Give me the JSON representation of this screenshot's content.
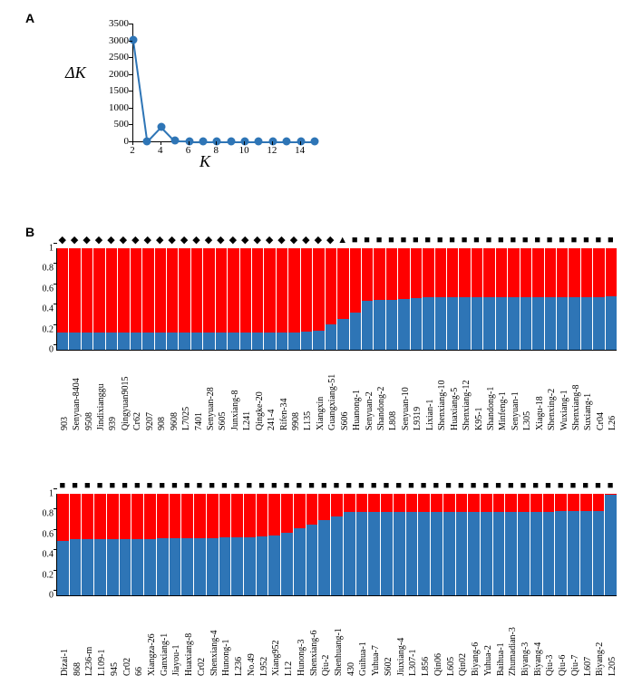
{
  "panelA": {
    "label": "A",
    "type": "line",
    "xlabel": "K",
    "ylabel": "ΔK",
    "xlim": [
      2,
      15
    ],
    "ylim": [
      0,
      3500
    ],
    "ytick_step": 500,
    "xtick_step": 2,
    "x": [
      2,
      3,
      4,
      5,
      6,
      7,
      8,
      9,
      10,
      11,
      12,
      13,
      14,
      15
    ],
    "y": [
      3020,
      8,
      440,
      14,
      12,
      10,
      9,
      8,
      8,
      7,
      7,
      6,
      6,
      6
    ],
    "line_color": "#2e75b6",
    "marker_color": "#2e75b6",
    "marker_size": 9,
    "line_width": 2
  },
  "panelB": {
    "label": "B",
    "type": "stacked-bar",
    "ylim": [
      0,
      1
    ],
    "ytick_step": 0.2,
    "top_color": "#ff0000",
    "bottom_color": "#2e75b6",
    "symbol_glyphs": {
      "diamond": "◆",
      "triangle": "▲",
      "square": "■"
    },
    "rows": [
      {
        "items": [
          {
            "label": "903",
            "blue": 0.17,
            "sym": "diamond"
          },
          {
            "label": "Senyuan-8404",
            "blue": 0.17,
            "sym": "diamond"
          },
          {
            "label": "9508",
            "blue": 0.17,
            "sym": "diamond"
          },
          {
            "label": "Jindixianggu",
            "blue": 0.17,
            "sym": "diamond"
          },
          {
            "label": "939",
            "blue": 0.17,
            "sym": "diamond"
          },
          {
            "label": "Qingyuan9015",
            "blue": 0.17,
            "sym": "diamond"
          },
          {
            "label": "Cr62",
            "blue": 0.17,
            "sym": "diamond"
          },
          {
            "label": "9207",
            "blue": 0.17,
            "sym": "diamond"
          },
          {
            "label": "908",
            "blue": 0.17,
            "sym": "diamond"
          },
          {
            "label": "9608",
            "blue": 0.17,
            "sym": "diamond"
          },
          {
            "label": "L7025",
            "blue": 0.17,
            "sym": "diamond"
          },
          {
            "label": "7401",
            "blue": 0.17,
            "sym": "diamond"
          },
          {
            "label": "Senyuan-28",
            "blue": 0.17,
            "sym": "diamond"
          },
          {
            "label": "S605",
            "blue": 0.17,
            "sym": "diamond"
          },
          {
            "label": "Junxiang-8",
            "blue": 0.17,
            "sym": "diamond"
          },
          {
            "label": "L241",
            "blue": 0.17,
            "sym": "diamond"
          },
          {
            "label": "Qingke-20",
            "blue": 0.17,
            "sym": "diamond"
          },
          {
            "label": "241-4",
            "blue": 0.17,
            "sym": "diamond"
          },
          {
            "label": "Rifen-34",
            "blue": 0.17,
            "sym": "diamond"
          },
          {
            "label": "9908",
            "blue": 0.17,
            "sym": "diamond"
          },
          {
            "label": "L135",
            "blue": 0.18,
            "sym": "diamond"
          },
          {
            "label": "Xiangxin",
            "blue": 0.19,
            "sym": "diamond"
          },
          {
            "label": "Guangxiang-51",
            "blue": 0.25,
            "sym": "diamond"
          },
          {
            "label": "S606",
            "blue": 0.3,
            "sym": "triangle"
          },
          {
            "label": "Huanong-1",
            "blue": 0.37,
            "sym": "square"
          },
          {
            "label": "Senyuan-2",
            "blue": 0.48,
            "sym": "square"
          },
          {
            "label": "Shandong-2",
            "blue": 0.49,
            "sym": "square"
          },
          {
            "label": "L808",
            "blue": 0.49,
            "sym": "square"
          },
          {
            "label": "Senyuan-10",
            "blue": 0.5,
            "sym": "square"
          },
          {
            "label": "L9319",
            "blue": 0.51,
            "sym": "square"
          },
          {
            "label": "Lixian-1",
            "blue": 0.52,
            "sym": "square"
          },
          {
            "label": "Shenxiang-10",
            "blue": 0.52,
            "sym": "square"
          },
          {
            "label": "Huaxiang-5",
            "blue": 0.52,
            "sym": "square"
          },
          {
            "label": "Shenxiang-12",
            "blue": 0.52,
            "sym": "square"
          },
          {
            "label": "K95-1",
            "blue": 0.52,
            "sym": "square"
          },
          {
            "label": "Shandong-1",
            "blue": 0.52,
            "sym": "square"
          },
          {
            "label": "Minfeng-1",
            "blue": 0.52,
            "sym": "square"
          },
          {
            "label": "Senyuan-1",
            "blue": 0.52,
            "sym": "square"
          },
          {
            "label": "L305",
            "blue": 0.52,
            "sym": "square"
          },
          {
            "label": "Xiagu-18",
            "blue": 0.52,
            "sym": "square"
          },
          {
            "label": "Shenxing-2",
            "blue": 0.52,
            "sym": "square"
          },
          {
            "label": "Wuxiang-1",
            "blue": 0.52,
            "sym": "square"
          },
          {
            "label": "Shenxiang-8",
            "blue": 0.52,
            "sym": "square"
          },
          {
            "label": "Suxiang-1",
            "blue": 0.52,
            "sym": "square"
          },
          {
            "label": "Cr04",
            "blue": 0.52,
            "sym": "square"
          },
          {
            "label": "L26",
            "blue": 0.53,
            "sym": "square"
          }
        ]
      },
      {
        "items": [
          {
            "label": "Dizai-1",
            "blue": 0.54,
            "sym": "square"
          },
          {
            "label": "868",
            "blue": 0.55,
            "sym": "square"
          },
          {
            "label": "L236-m",
            "blue": 0.55,
            "sym": "square"
          },
          {
            "label": "L109-1",
            "blue": 0.55,
            "sym": "square"
          },
          {
            "label": "945",
            "blue": 0.55,
            "sym": "square"
          },
          {
            "label": "Cr02",
            "blue": 0.55,
            "sym": "square"
          },
          {
            "label": "66",
            "blue": 0.55,
            "sym": "square"
          },
          {
            "label": "Xiangza-26",
            "blue": 0.55,
            "sym": "square"
          },
          {
            "label": "Ganxiang-1",
            "blue": 0.56,
            "sym": "square"
          },
          {
            "label": "Jiayou-1",
            "blue": 0.56,
            "sym": "square"
          },
          {
            "label": "Huaxiang-8",
            "blue": 0.56,
            "sym": "square"
          },
          {
            "label": "Cr02",
            "blue": 0.56,
            "sym": "square"
          },
          {
            "label": "Shenxiang-4",
            "blue": 0.56,
            "sym": "square"
          },
          {
            "label": "Hunong-1",
            "blue": 0.57,
            "sym": "square"
          },
          {
            "label": "L236",
            "blue": 0.57,
            "sym": "square"
          },
          {
            "label": "No.49",
            "blue": 0.57,
            "sym": "square"
          },
          {
            "label": "L952",
            "blue": 0.58,
            "sym": "square"
          },
          {
            "label": "Xiang952",
            "blue": 0.59,
            "sym": "square"
          },
          {
            "label": "L12",
            "blue": 0.62,
            "sym": "square"
          },
          {
            "label": "Hunong-3",
            "blue": 0.66,
            "sym": "square"
          },
          {
            "label": "Shenxiang-6",
            "blue": 0.7,
            "sym": "square"
          },
          {
            "label": "Qiu-2",
            "blue": 0.74,
            "sym": "square"
          },
          {
            "label": "Shenhuang-1",
            "blue": 0.78,
            "sym": "square"
          },
          {
            "label": "430",
            "blue": 0.82,
            "sym": "square"
          },
          {
            "label": "Guihua-1",
            "blue": 0.82,
            "sym": "square"
          },
          {
            "label": "Yuhua-7",
            "blue": 0.82,
            "sym": "square"
          },
          {
            "label": "S602",
            "blue": 0.82,
            "sym": "square"
          },
          {
            "label": "Jiuxiang-4",
            "blue": 0.82,
            "sym": "square"
          },
          {
            "label": "L307-1",
            "blue": 0.82,
            "sym": "square"
          },
          {
            "label": "L856",
            "blue": 0.82,
            "sym": "square"
          },
          {
            "label": "Qin06",
            "blue": 0.82,
            "sym": "square"
          },
          {
            "label": "L605",
            "blue": 0.82,
            "sym": "square"
          },
          {
            "label": "Qin02",
            "blue": 0.82,
            "sym": "square"
          },
          {
            "label": "Biyang-6",
            "blue": 0.82,
            "sym": "square"
          },
          {
            "label": "Yuhua-2",
            "blue": 0.82,
            "sym": "square"
          },
          {
            "label": "Baihua-1",
            "blue": 0.82,
            "sym": "square"
          },
          {
            "label": "Zhumadian-3",
            "blue": 0.82,
            "sym": "square"
          },
          {
            "label": "Biyang-3",
            "blue": 0.82,
            "sym": "square"
          },
          {
            "label": "Biyang-4",
            "blue": 0.82,
            "sym": "square"
          },
          {
            "label": "Qiu-3",
            "blue": 0.82,
            "sym": "square"
          },
          {
            "label": "Qiu-6",
            "blue": 0.83,
            "sym": "square"
          },
          {
            "label": "Qiu-7",
            "blue": 0.83,
            "sym": "square"
          },
          {
            "label": "L607",
            "blue": 0.83,
            "sym": "square"
          },
          {
            "label": "Biyang-2",
            "blue": 0.83,
            "sym": "square"
          },
          {
            "label": "L205",
            "blue": 0.99,
            "sym": "square"
          }
        ]
      }
    ]
  }
}
